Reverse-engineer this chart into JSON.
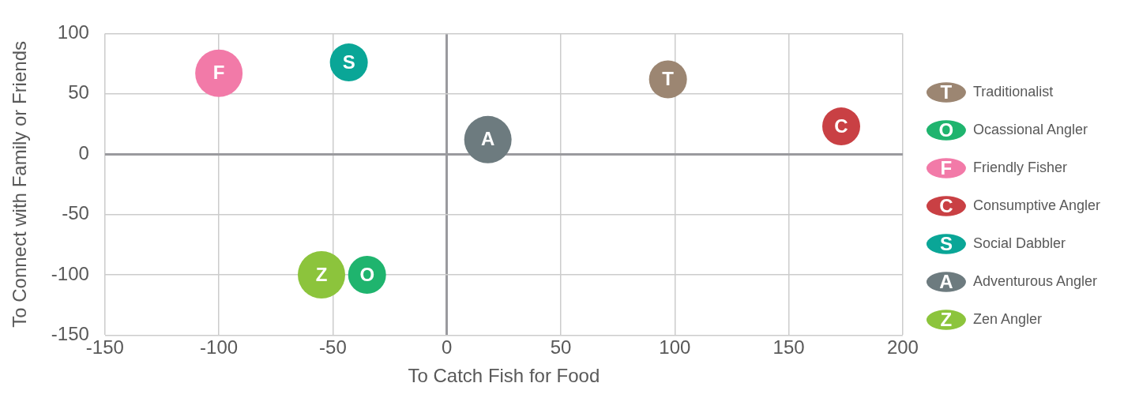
{
  "chart_data": {
    "type": "bubble",
    "xlabel": "To Catch Fish for Food",
    "ylabel": "To Connect with Family or Friends",
    "xlim": [
      -150,
      200
    ],
    "xticks": [
      -150,
      -100,
      -50,
      0,
      50,
      100,
      150,
      200
    ],
    "ylim": [
      -150,
      100
    ],
    "yticks": [
      -150,
      -100,
      -50,
      0,
      50,
      100
    ],
    "grid": true,
    "legend": "right",
    "series": [
      {
        "name": "Traditionalist",
        "color": "#9c8672",
        "x": [
          97
        ],
        "values": [
          62
        ],
        "sizes": [
          0.64
        ],
        "value_labels": [
          "T"
        ]
      },
      {
        "name": "Ocassional Angler",
        "color": "#1fb46e",
        "x": [
          -35
        ],
        "values": [
          -100
        ],
        "sizes": [
          0.64
        ],
        "value_labels": [
          "O"
        ]
      },
      {
        "name": "Friendly Fisher",
        "color": "#f27aa8",
        "x": [
          -100
        ],
        "values": [
          67
        ],
        "sizes": [
          1
        ],
        "value_labels": [
          "F"
        ]
      },
      {
        "name": "Consumptive Angler",
        "color": "#c94044",
        "x": [
          173
        ],
        "values": [
          23
        ],
        "sizes": [
          0.64
        ],
        "value_labels": [
          "C"
        ]
      },
      {
        "name": "Social Dabbler",
        "color": "#0aa697",
        "x": [
          -43
        ],
        "values": [
          76
        ],
        "sizes": [
          0.64
        ],
        "value_labels": [
          "S"
        ]
      },
      {
        "name": "Adventurous Angler",
        "color": "#6d7b7f",
        "x": [
          18
        ],
        "values": [
          12
        ],
        "sizes": [
          1
        ],
        "value_labels": [
          "A"
        ]
      },
      {
        "name": "Zen Angler",
        "color": "#8cc43c",
        "x": [
          -55
        ],
        "values": [
          -100
        ],
        "sizes": [
          1
        ],
        "value_labels": [
          "Z"
        ]
      }
    ]
  }
}
